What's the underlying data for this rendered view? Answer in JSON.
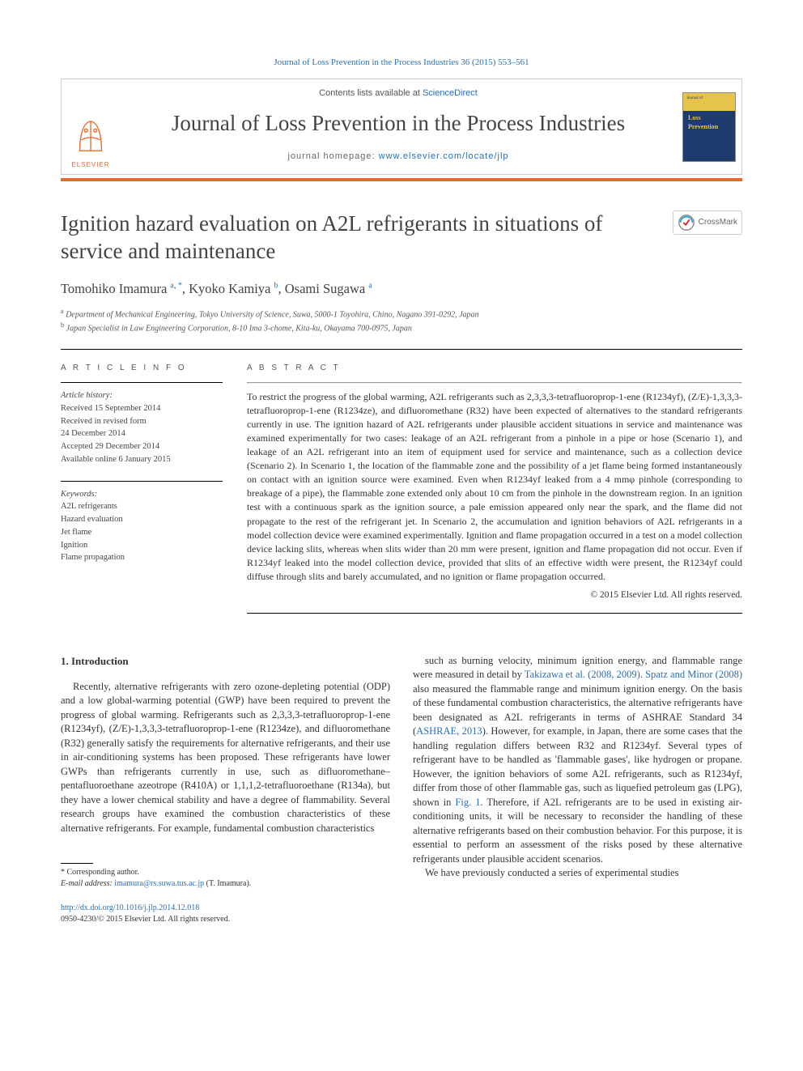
{
  "top_citation_link": "Journal of Loss Prevention in the Process Industries 36 (2015) 553–561",
  "header": {
    "contents_prefix": "Contents lists available at ",
    "contents_link": "ScienceDirect",
    "journal_name": "Journal of Loss Prevention in the Process Industries",
    "homepage_prefix": "journal homepage: ",
    "homepage_link": "www.elsevier.com/locate/jlp",
    "publisher_logo_text": "ELSEVIER",
    "cover_small_top": "Journal of",
    "cover_small_title": "Loss\nPrevention",
    "cover_small_sub": "in the Process Industries"
  },
  "title": "Ignition hazard evaluation on A2L refrigerants in situations of service and maintenance",
  "crossmark_label": "CrossMark",
  "authors_html": "Tomohiko Imamura <sup><a>a</a>, <a>*</a></sup>, Kyoko Kamiya <sup><a>b</a></sup>, Osami Sugawa <sup><a>a</a></sup>",
  "affiliations": {
    "a": "Department of Mechanical Engineering, Tokyo University of Science, Suwa, 5000-1 Toyohira, Chino, Nagano 391-0292, Japan",
    "b": "Japan Specialist in Law Engineering Corporation, 8-10 Ima 3-chome, Kita-ku, Okayama 700-0975, Japan"
  },
  "article_info": {
    "header": "A R T I C L E   I N F O",
    "history_label": "Article history:",
    "received": "Received 15 September 2014",
    "revised": "Received in revised form\n24 December 2014",
    "accepted": "Accepted 29 December 2014",
    "online": "Available online 6 January 2015",
    "keywords_label": "Keywords:",
    "keywords": [
      "A2L refrigerants",
      "Hazard evaluation",
      "Jet flame",
      "Ignition",
      "Flame propagation"
    ]
  },
  "abstract": {
    "header": "A B S T R A C T",
    "text": "To restrict the progress of the global warming, A2L refrigerants such as 2,3,3,3-tetrafluoroprop-1-ene (R1234yf), (Z/E)-1,3,3,3-tetrafluoroprop-1-ene (R1234ze), and difluoromethane (R32) have been expected of alternatives to the standard refrigerants currently in use. The ignition hazard of A2L refrigerants under plausible accident situations in service and maintenance was examined experimentally for two cases: leakage of an A2L refrigerant from a pinhole in a pipe or hose (Scenario 1), and leakage of an A2L refrigerant into an item of equipment used for service and maintenance, such as a collection device (Scenario 2). In Scenario 1, the location of the flammable zone and the possibility of a jet flame being formed instantaneously on contact with an ignition source were examined. Even when R1234yf leaked from a 4 mmφ pinhole (corresponding to breakage of a pipe), the flammable zone extended only about 10 cm from the pinhole in the downstream region. In an ignition test with a continuous spark as the ignition source, a pale emission appeared only near the spark, and the flame did not propagate to the rest of the refrigerant jet. In Scenario 2, the accumulation and ignition behaviors of A2L refrigerants in a model collection device were examined experimentally. Ignition and flame propagation occurred in a test on a model collection device lacking slits, whereas when slits wider than 20 mm were present, ignition and flame propagation did not occur. Even if R1234yf leaked into the model collection device, provided that slits of an effective width were present, the R1234yf could diffuse through slits and barely accumulated, and no ignition or flame propagation occurred.",
    "copyright": "© 2015 Elsevier Ltd. All rights reserved."
  },
  "intro": {
    "heading": "1.  Introduction",
    "col1": "Recently, alternative refrigerants with zero ozone-depleting potential (ODP) and a low global-warming potential (GWP) have been required to prevent the progress of global warming. Refrigerants such as 2,3,3,3-tetrafluoroprop-1-ene (R1234yf), (Z/E)-1,3,3,3-tetrafluoroprop-1-ene (R1234ze), and difluoromethane (R32) generally satisfy the requirements for alternative refrigerants, and their use in air-conditioning systems has been proposed. These refrigerants have lower GWPs than refrigerants currently in use, such as difluoromethane–pentafluoroethane azeotrope (R410A) or 1,1,1,2-tetrafluoroethane (R134a), but they have a lower chemical stability and have a degree of flammability. Several research groups have examined the combustion characteristics of these alternative refrigerants. For example, fundamental combustion characteristics",
    "col2_pre": "such as burning velocity, minimum ignition energy, and flammable range were measured in detail by ",
    "col2_link1": "Takizawa et al. (2008, 2009)",
    "col2_mid1": ". ",
    "col2_link2": "Spatz and Minor (2008)",
    "col2_mid2": " also measured the flammable range and minimum ignition energy. On the basis of these fundamental combustion characteristics, the alternative refrigerants have been designated as A2L refrigerants in terms of ASHRAE Standard 34 (",
    "col2_link3": "ASHRAE, 2013",
    "col2_mid3": "). However, for example, in Japan, there are some cases that the handling regulation differs between R32 and R1234yf. Several types of refrigerant have to be handled as 'flammable gases', like hydrogen or propane. However, the ignition behaviors of some A2L refrigerants, such as R1234yf, differ from those of other flammable gas, such as liquefied petroleum gas (LPG), shown in ",
    "col2_link4": "Fig. 1",
    "col2_mid4": ". Therefore, if A2L refrigerants are to be used in existing air-conditioning units, it will be necessary to reconsider the handling of these alternative refrigerants based on their combustion behavior. For this purpose, it is essential to perform an assessment of the risks posed by these alternative refrigerants under plausible accident scenarios.",
    "col2_last": "We have previously conducted a series of experimental studies"
  },
  "footnote": {
    "corr": "* Corresponding author.",
    "email_label": "E-mail address: ",
    "email": "imamura@rs.suwa.tus.ac.jp",
    "email_suffix": " (T. Imamura)."
  },
  "doi": {
    "link": "http://dx.doi.org/10.1016/j.jlp.2014.12.018",
    "line2": "0950-4230/© 2015 Elsevier Ltd. All rights reserved."
  },
  "colors": {
    "accent_orange": "#e86a28",
    "link_blue": "#2a6fb3",
    "text_gray": "#444444"
  }
}
